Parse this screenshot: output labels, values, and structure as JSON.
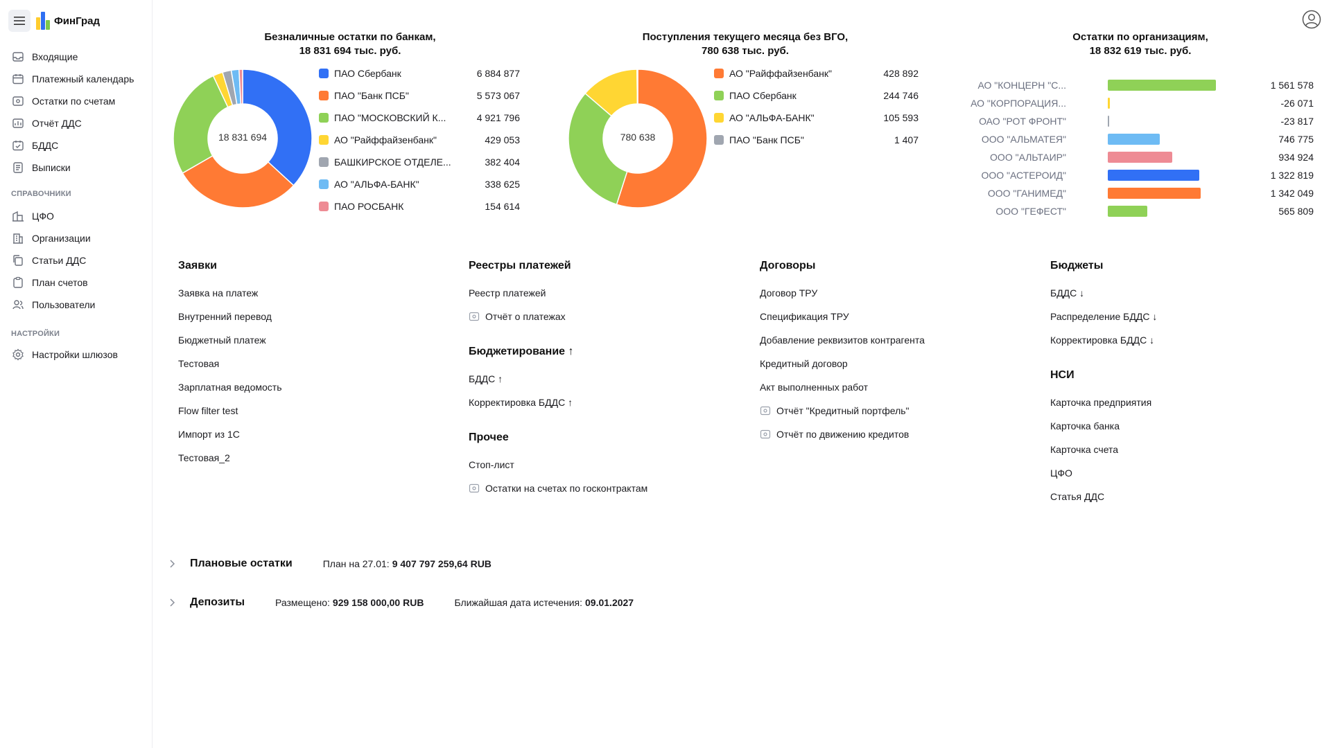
{
  "app": {
    "name": "ФинГрад"
  },
  "nav": {
    "items_main": [
      {
        "label": "Входящие",
        "icon": "inbox-icon"
      },
      {
        "label": "Платежный календарь",
        "icon": "calendar-icon"
      },
      {
        "label": "Остатки по счетам",
        "icon": "wallet-icon"
      },
      {
        "label": "Отчёт ДДС",
        "icon": "report-icon"
      },
      {
        "label": "БДДС",
        "icon": "calendar-check-icon"
      },
      {
        "label": "Выписки",
        "icon": "statement-icon"
      }
    ],
    "section_ref": "СПРАВОЧНИКИ",
    "items_ref": [
      {
        "label": "ЦФО",
        "icon": "buildings-icon"
      },
      {
        "label": "Организации",
        "icon": "building-icon"
      },
      {
        "label": "Статьи ДДС",
        "icon": "copy-icon"
      },
      {
        "label": "План счетов",
        "icon": "clipboard-icon"
      },
      {
        "label": "Пользователи",
        "icon": "users-icon"
      }
    ],
    "section_settings": "НАСТРОЙКИ",
    "items_settings": [
      {
        "label": "Настройки шлюзов",
        "icon": "gear-icon"
      }
    ]
  },
  "charts": {
    "banks": {
      "title_line1": "Безналичные остатки по банкам,",
      "title_line2": "18 831 694 тыс. руб.",
      "center": "18 831 694"
    },
    "income": {
      "title_line1": "Поступления текущего месяца без ВГО,",
      "title_line2": "780 638 тыс. руб.",
      "center": "780 638"
    },
    "orgs": {
      "title_line1": "Остатки по организациям,",
      "title_line2": "18 832 619 тыс. руб."
    }
  },
  "chart_data": [
    {
      "type": "pie",
      "title": "Безналичные остатки по банкам, 18 831 694 тыс. руб.",
      "categories": [
        "ПАО Сбербанк",
        "ПАО \"Банк ПСБ\"",
        "ПАО \"МОСКОВСКИЙ К...",
        "АО \"Райффайзенбанк\"",
        "БАШКИРСКОЕ ОТДЕЛЕ...",
        "АО \"АЛЬФА-БАНК\"",
        "ПАО РОСБАНК"
      ],
      "values": [
        6884877,
        5573067,
        4921796,
        429053,
        382404,
        338625,
        154614
      ],
      "labels": [
        "6 884 877",
        "5 573 067",
        "4 921 796",
        "429 053",
        "382 404",
        "338 625",
        "154 614"
      ],
      "colors": [
        "#3170f5",
        "#ff7a34",
        "#8fd157",
        "#ffd633",
        "#a0a6b0",
        "#6ebbf4",
        "#ee8b94"
      ]
    },
    {
      "type": "pie",
      "title": "Поступления текущего месяца без ВГО, 780 638 тыс. руб.",
      "categories": [
        "АО \"Райффайзенбанк\"",
        "ПАО Сбербанк",
        "АО \"АЛЬФА-БАНК\"",
        "ПАО \"Банк ПСБ\""
      ],
      "values": [
        428892,
        244746,
        105593,
        1407
      ],
      "labels": [
        "428 892",
        "244 746",
        "105 593",
        "1 407"
      ],
      "colors": [
        "#ff7a34",
        "#8fd157",
        "#ffd633",
        "#a0a6b0"
      ]
    },
    {
      "type": "bar",
      "title": "Остатки по организациям, 18 832 619 тыс. руб.",
      "categories": [
        "АО \"КОНЦЕРН \"С...",
        "АО \"КОРПОРАЦИЯ...",
        "ОАО \"РОТ ФРОНТ\"",
        "ООО \"АЛЬМАТЕЯ\"",
        "ООО \"АЛЬТАИР\"",
        "ООО \"АСТЕРОИД\"",
        "ООО \"ГАНИМЕД\"",
        "ООО \"ГЕФЕСТ\""
      ],
      "values": [
        1561578,
        -26071,
        -23817,
        746775,
        934924,
        1322819,
        1342049,
        565809
      ],
      "labels": [
        "1 561 578",
        "-26 071",
        "-23 817",
        "746 775",
        "934 924",
        "1 322 819",
        "1 342 049",
        "565 809"
      ],
      "colors": [
        "#8fd157",
        "#ffd633",
        "#a0a6b0",
        "#6ebbf4",
        "#ee8b94",
        "#3170f5",
        "#ff7a34",
        "#8fd157"
      ]
    }
  ],
  "sections": {
    "col1": {
      "title": "Заявки",
      "links": [
        "Заявка на платеж",
        "Внутренний перевод",
        "Бюджетный платеж",
        "Тестовая",
        "Зарплатная ведомость",
        "Flow filter test",
        "Импорт из 1С",
        "Тестовая_2"
      ]
    },
    "col2": {
      "title": "Реестры платежей",
      "links": [
        "Реестр платежей"
      ],
      "report_links": [
        "Отчёт о платежах"
      ],
      "title2": "Бюджетирование ↑",
      "links2": [
        "БДДС ↑",
        "Корректировка БДДС ↑"
      ],
      "title3": "Прочее",
      "links3": [
        "Стоп-лист"
      ],
      "report_links3": [
        "Остатки на счетах по госконтрактам"
      ]
    },
    "col3": {
      "title": "Договоры",
      "links": [
        "Договор ТРУ",
        "Спецификация ТРУ",
        "Добавление реквизитов контрагента",
        "Кредитный договор",
        "Акт выполненных работ"
      ],
      "report_links": [
        "Отчёт \"Кредитный портфель\"",
        "Отчёт по движению кредитов"
      ]
    },
    "col4": {
      "title": "Бюджеты",
      "links": [
        "БДДС ↓",
        "Распределение БДДС ↓",
        "Корректировка БДДС ↓"
      ],
      "title2": "НСИ",
      "links2": [
        "Карточка предприятия",
        "Карточка банка",
        "Карточка счета",
        "ЦФО",
        "Статья ДДС"
      ]
    }
  },
  "bottom": {
    "plan": {
      "title": "Плановые остатки",
      "label": "План на 27.01:",
      "value": "9 407 797 259,64 RUB"
    },
    "deposits": {
      "title": "Депозиты",
      "placed_label": "Размещено:",
      "placed_value": "929 158 000,00 RUB",
      "expiry_label": "Ближайшая дата истечения:",
      "expiry_value": "09.01.2027"
    }
  }
}
